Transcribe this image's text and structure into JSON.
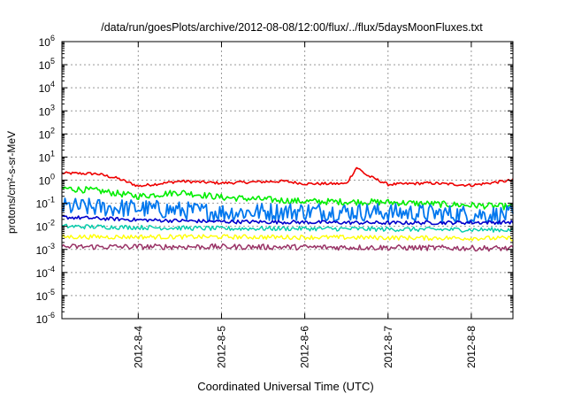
{
  "chart_data": {
    "type": "line",
    "title": "/data/run/goesPlots/archive/2012-08-08/12:00/flux/../flux/5daysMoonFluxes.txt",
    "xlabel": "Coordinated Universal Time (UTC)",
    "ylabel": "protons/cm²-s-sr-MeV",
    "yscale": "log",
    "ylim": [
      1e-06,
      1000000.0
    ],
    "xlim": [
      "2012-08-03 02:00",
      "2012-08-08 12:00"
    ],
    "grid": true,
    "legend": "none",
    "x_ticks": [
      "2012-8-4",
      "2012-8-5",
      "2012-8-6",
      "2012-8-7",
      "2012-8-8"
    ],
    "y_ticks": [
      {
        "base": "10",
        "exp": "-6"
      },
      {
        "base": "10",
        "exp": "-5"
      },
      {
        "base": "10",
        "exp": "-4"
      },
      {
        "base": "10",
        "exp": "-3"
      },
      {
        "base": "10",
        "exp": "-2"
      },
      {
        "base": "10",
        "exp": "-1"
      },
      {
        "base": "10",
        "exp": "0"
      },
      {
        "base": "10",
        "exp": "1"
      },
      {
        "base": "10",
        "exp": "2"
      },
      {
        "base": "10",
        "exp": "3"
      },
      {
        "base": "10",
        "exp": "4"
      },
      {
        "base": "10",
        "exp": "5"
      },
      {
        "base": "10",
        "exp": "6"
      }
    ],
    "series": [
      {
        "color": "#ee0000",
        "width": 1.6,
        "noise": 0.06,
        "values": [
          {
            "x": "2012-08-03 02:00",
            "y": 2.0
          },
          {
            "x": "2012-08-03 12:00",
            "y": 1.9
          },
          {
            "x": "2012-08-03 18:00",
            "y": 1.2
          },
          {
            "x": "2012-08-04 00:00",
            "y": 0.55
          },
          {
            "x": "2012-08-04 12:00",
            "y": 0.9
          },
          {
            "x": "2012-08-05 00:00",
            "y": 0.75
          },
          {
            "x": "2012-08-05 12:00",
            "y": 0.85
          },
          {
            "x": "2012-08-05 18:00",
            "y": 0.9
          },
          {
            "x": "2012-08-06 00:00",
            "y": 0.7
          },
          {
            "x": "2012-08-06 12:00",
            "y": 0.7
          },
          {
            "x": "2012-08-06 15:00",
            "y": 3.6
          },
          {
            "x": "2012-08-06 18:00",
            "y": 1.6
          },
          {
            "x": "2012-08-07 00:00",
            "y": 0.65
          },
          {
            "x": "2012-08-07 12:00",
            "y": 0.75
          },
          {
            "x": "2012-08-08 00:00",
            "y": 0.6
          },
          {
            "x": "2012-08-08 12:00",
            "y": 1.0
          }
        ]
      },
      {
        "color": "#00ee00",
        "width": 1.6,
        "noise": 0.14,
        "values": [
          {
            "x": "2012-08-03 02:00",
            "y": 0.45
          },
          {
            "x": "2012-08-03 12:00",
            "y": 0.35
          },
          {
            "x": "2012-08-04 00:00",
            "y": 0.2
          },
          {
            "x": "2012-08-04 12:00",
            "y": 0.3
          },
          {
            "x": "2012-08-05 00:00",
            "y": 0.18
          },
          {
            "x": "2012-08-06 00:00",
            "y": 0.12
          },
          {
            "x": "2012-08-07 00:00",
            "y": 0.11
          },
          {
            "x": "2012-08-08 12:00",
            "y": 0.07
          }
        ]
      },
      {
        "color": "#0077ee",
        "width": 1.8,
        "noise": 0.4,
        "values": [
          {
            "x": "2012-08-03 02:00",
            "y": 0.07
          },
          {
            "x": "2012-08-04 00:00",
            "y": 0.06
          },
          {
            "x": "2012-08-05 00:00",
            "y": 0.04
          },
          {
            "x": "2012-08-06 00:00",
            "y": 0.045
          },
          {
            "x": "2012-08-07 00:00",
            "y": 0.04
          },
          {
            "x": "2012-08-08 12:00",
            "y": 0.03
          }
        ]
      },
      {
        "color": "#0000cc",
        "width": 1.6,
        "noise": 0.08,
        "values": [
          {
            "x": "2012-08-03 02:00",
            "y": 0.025
          },
          {
            "x": "2012-08-04 00:00",
            "y": 0.019
          },
          {
            "x": "2012-08-05 00:00",
            "y": 0.016
          },
          {
            "x": "2012-08-06 00:00",
            "y": 0.015
          },
          {
            "x": "2012-08-07 00:00",
            "y": 0.014
          },
          {
            "x": "2012-08-08 12:00",
            "y": 0.015
          }
        ]
      },
      {
        "color": "#00ccaa",
        "width": 1.4,
        "noise": 0.1,
        "values": [
          {
            "x": "2012-08-03 02:00",
            "y": 0.01
          },
          {
            "x": "2012-08-04 00:00",
            "y": 0.009
          },
          {
            "x": "2012-08-05 00:00",
            "y": 0.008
          },
          {
            "x": "2012-08-06 00:00",
            "y": 0.008
          },
          {
            "x": "2012-08-07 00:00",
            "y": 0.0075
          },
          {
            "x": "2012-08-08 12:00",
            "y": 0.007
          }
        ]
      },
      {
        "color": "#ffff00",
        "width": 1.4,
        "noise": 0.1,
        "values": [
          {
            "x": "2012-08-03 02:00",
            "y": 0.0035
          },
          {
            "x": "2012-08-05 00:00",
            "y": 0.0035
          },
          {
            "x": "2012-08-06 12:00",
            "y": 0.0033
          },
          {
            "x": "2012-08-08 12:00",
            "y": 0.003
          }
        ]
      },
      {
        "color": "#993366",
        "width": 1.5,
        "noise": 0.12,
        "values": [
          {
            "x": "2012-08-03 02:00",
            "y": 0.0013
          },
          {
            "x": "2012-08-05 00:00",
            "y": 0.0013
          },
          {
            "x": "2012-08-07 00:00",
            "y": 0.0012
          },
          {
            "x": "2012-08-08 12:00",
            "y": 0.0011
          }
        ]
      }
    ]
  }
}
